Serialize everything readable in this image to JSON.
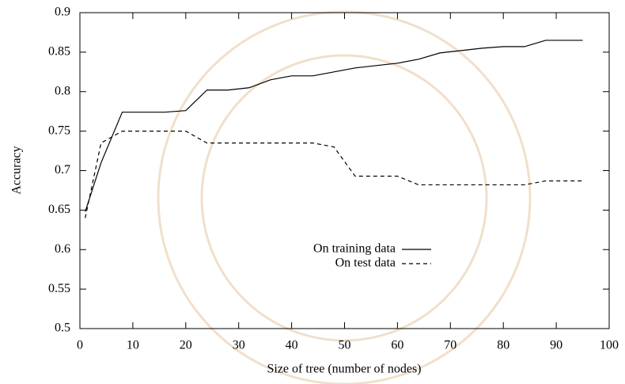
{
  "chart_data": {
    "type": "line",
    "xlabel": "Size of tree (number of nodes)",
    "ylabel": "Accuracy",
    "x": [
      1,
      4,
      8,
      12,
      16,
      20,
      24,
      28,
      32,
      36,
      40,
      44,
      48,
      52,
      56,
      60,
      64,
      68,
      72,
      76,
      80,
      84,
      88,
      92,
      95
    ],
    "series": [
      {
        "name": "On training data",
        "color": "#000000",
        "style": "solid",
        "values": [
          0.648,
          0.71,
          0.774,
          0.774,
          0.774,
          0.776,
          0.802,
          0.802,
          0.805,
          0.815,
          0.82,
          0.82,
          0.825,
          0.83,
          0.833,
          0.836,
          0.841,
          0.849,
          0.852,
          0.855,
          0.857,
          0.857,
          0.865,
          0.865,
          0.865
        ]
      },
      {
        "name": "On test data",
        "color": "#000000",
        "style": "dashed",
        "values": [
          0.64,
          0.735,
          0.75,
          0.75,
          0.75,
          0.75,
          0.735,
          0.735,
          0.735,
          0.735,
          0.735,
          0.735,
          0.73,
          0.693,
          0.693,
          0.693,
          0.682,
          0.682,
          0.682,
          0.682,
          0.682,
          0.682,
          0.687,
          0.687,
          0.687
        ]
      }
    ],
    "xlim": [
      0,
      100
    ],
    "xticks": [
      0,
      10,
      20,
      30,
      40,
      50,
      60,
      70,
      80,
      90,
      100
    ],
    "ylim": [
      0.5,
      0.9
    ],
    "yticks": [
      0.5,
      0.55,
      0.6,
      0.65,
      0.7,
      0.75,
      0.8,
      0.85,
      0.9
    ],
    "grid": false
  }
}
